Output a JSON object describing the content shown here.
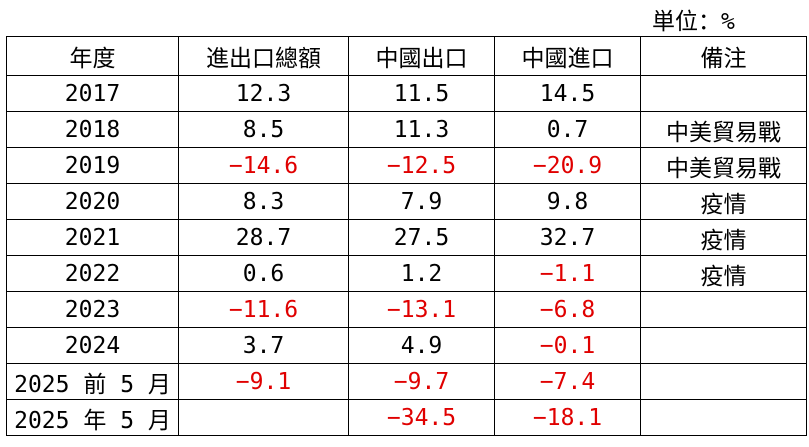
{
  "unit": "単位：%",
  "table": {
    "header": [
      "年度",
      "進出口總額",
      "中國出口",
      "中國進口",
      "備注"
    ],
    "rows": [
      [
        "2017",
        "12.3",
        "11.5",
        "14.5",
        null
      ],
      [
        "2018",
        "8.5",
        "11.3",
        "0.7",
        "中美貿易戰"
      ],
      [
        "2019",
        "−14.6",
        "−12.5",
        "−20.9",
        "中美貿易戰"
      ],
      [
        "2020",
        "8.3",
        "7.9",
        "9.8",
        "疫情"
      ],
      [
        "2021",
        "28.7",
        "27.5",
        "32.7",
        "疫情"
      ],
      [
        "2022",
        "0.6",
        "1.2",
        "−1.1",
        "疫情"
      ],
      [
        "2023",
        "−11.6",
        "−13.1",
        "−6.8",
        null
      ],
      [
        "2024",
        "3.7",
        "4.9",
        "−0.1",
        null
      ],
      [
        "2025 前 5 月",
        "−9.1",
        "−9.7",
        "−7.4",
        null
      ],
      [
        "2025 年 5 月",
        null,
        "−34.5",
        "−18.1",
        null
      ]
    ]
  }
}
